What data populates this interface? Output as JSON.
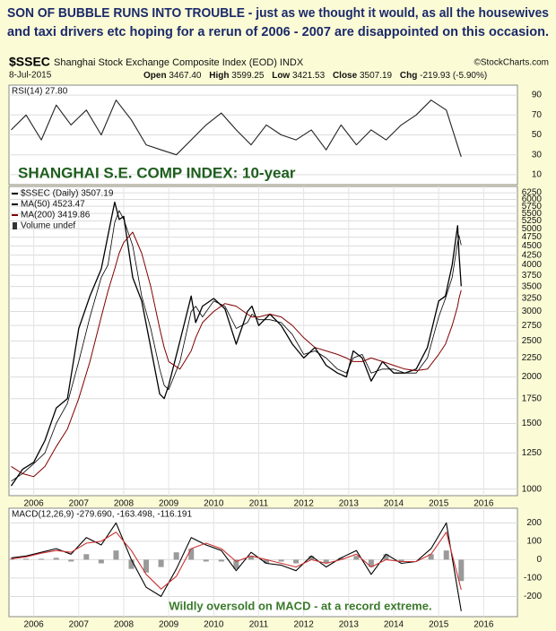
{
  "headline": [
    "SON OF BUBBLE RUNS INTO TROUBLE - just as we thought it would, as all the housewives",
    "and taxi drivers etc hoping for a rerun of 2006 - 2007 are disappointed on this occasion."
  ],
  "header": {
    "symbol": "$SSEC",
    "name": "Shanghai Stock Exchange Composite Index (EOD) INDX",
    "source": "©StockCharts.com",
    "date": "8-Jul-2015",
    "quote": [
      {
        "label": "Open",
        "value": "3467.40"
      },
      {
        "label": "High",
        "value": "3599.25"
      },
      {
        "label": "Low",
        "value": "3421.53"
      },
      {
        "label": "Close",
        "value": "3507.19"
      },
      {
        "label": "Chg",
        "value": "-219.93 (-5.90%)"
      }
    ]
  },
  "chart_data": [
    {
      "type": "line",
      "title": "RSI(14) 27.80",
      "annotation": "SHANGHAI S.E. COMP INDEX: 10-year",
      "x": [
        2005.5,
        2005.83,
        2006.17,
        2006.5,
        2006.83,
        2007.17,
        2007.5,
        2007.83,
        2008.17,
        2008.5,
        2008.83,
        2009.17,
        2009.5,
        2009.83,
        2010.17,
        2010.5,
        2010.83,
        2011.17,
        2011.5,
        2011.83,
        2012.17,
        2012.5,
        2012.83,
        2013.17,
        2013.5,
        2013.83,
        2014.17,
        2014.5,
        2014.83,
        2015.17,
        2015.5
      ],
      "series": [
        {
          "color": "#222222",
          "values": [
            55,
            70,
            45,
            80,
            60,
            75,
            50,
            85,
            65,
            40,
            35,
            30,
            45,
            60,
            72,
            55,
            40,
            60,
            50,
            45,
            55,
            35,
            60,
            40,
            55,
            45,
            60,
            70,
            85,
            75,
            27.8
          ]
        }
      ],
      "xlim": [
        2005.45,
        2016.75
      ],
      "ylim": [
        0,
        100
      ],
      "yticks": [
        10,
        30,
        50,
        70,
        90
      ],
      "grid": true
    },
    {
      "type": "line",
      "log_scale": true,
      "legend_items": [
        "Volume undef"
      ],
      "x": [
        2005.5,
        2005.75,
        2006.0,
        2006.25,
        2006.5,
        2006.75,
        2007.0,
        2007.25,
        2007.5,
        2007.65,
        2007.8,
        2007.9,
        2008.0,
        2008.2,
        2008.4,
        2008.6,
        2008.8,
        2008.9,
        2009.0,
        2009.25,
        2009.5,
        2009.6,
        2009.75,
        2010.0,
        2010.25,
        2010.5,
        2010.75,
        2010.85,
        2011.0,
        2011.25,
        2011.5,
        2011.75,
        2012.0,
        2012.25,
        2012.5,
        2012.75,
        2012.95,
        2013.1,
        2013.3,
        2013.5,
        2013.75,
        2014.0,
        2014.25,
        2014.5,
        2014.75,
        2015.0,
        2015.15,
        2015.3,
        2015.42,
        2015.45,
        2015.5
      ],
      "series": [
        {
          "name": "$SSEC (Daily) 3507.19",
          "color": "#000000",
          "width": 1.3,
          "values": [
            1020,
            1130,
            1180,
            1350,
            1650,
            1750,
            2700,
            3300,
            3900,
            4800,
            5900,
            5300,
            5400,
            3700,
            3200,
            2400,
            1800,
            1750,
            1900,
            2500,
            3300,
            2800,
            3100,
            3250,
            3050,
            2450,
            3000,
            3100,
            2750,
            2950,
            2750,
            2450,
            2250,
            2400,
            2150,
            2050,
            2000,
            2350,
            2250,
            1950,
            2200,
            2050,
            2050,
            2100,
            2400,
            3200,
            3300,
            4000,
            5100,
            4300,
            3507.19
          ]
        },
        {
          "name": "MA(50) 4523.47",
          "color": "#000000",
          "width": 0.8,
          "values": [
            1050,
            1100,
            1170,
            1250,
            1500,
            1700,
            2200,
            2900,
            3700,
            4000,
            5200,
            5600,
            5300,
            4500,
            3300,
            2700,
            2100,
            1900,
            1850,
            2200,
            3000,
            3100,
            2900,
            3200,
            3100,
            2700,
            2800,
            2950,
            2850,
            2850,
            2800,
            2600,
            2300,
            2350,
            2250,
            2100,
            2050,
            2250,
            2300,
            2050,
            2100,
            2100,
            2050,
            2050,
            2250,
            2900,
            3250,
            3700,
            4600,
            4800,
            4523.47
          ]
        },
        {
          "name": "MA(200) 3419.86",
          "color": "#800000",
          "width": 1,
          "values": [
            1150,
            1100,
            1080,
            1150,
            1300,
            1450,
            1750,
            2200,
            2900,
            3400,
            3900,
            4300,
            4600,
            4900,
            4300,
            3500,
            2700,
            2400,
            2200,
            2100,
            2350,
            2550,
            2800,
            3000,
            3150,
            3100,
            2950,
            2900,
            2900,
            2950,
            2900,
            2750,
            2550,
            2400,
            2350,
            2300,
            2250,
            2200,
            2200,
            2250,
            2200,
            2150,
            2100,
            2080,
            2100,
            2300,
            2450,
            2750,
            3100,
            3250,
            3419.86
          ]
        }
      ],
      "xlim": [
        2005.45,
        2016.75
      ],
      "xticks": [
        2006,
        2007,
        2008,
        2009,
        2010,
        2011,
        2012,
        2013,
        2014,
        2015,
        2016
      ],
      "ylim": [
        960,
        6500
      ],
      "yticks": [
        1000,
        1250,
        1500,
        1750,
        2000,
        2250,
        2500,
        2750,
        3000,
        3250,
        3500,
        3750,
        4000,
        4250,
        4500,
        4750,
        5000,
        5250,
        5500,
        5750,
        6000,
        6250
      ],
      "grid": true
    },
    {
      "type": "line",
      "title": "MACD(12,26,9) -279.690, -163.498, -116.191",
      "annotation": "Wildly oversold on MACD - at a record extreme.",
      "x": [
        2005.5,
        2005.83,
        2006.17,
        2006.5,
        2006.83,
        2007.17,
        2007.5,
        2007.83,
        2008.17,
        2008.5,
        2008.83,
        2009.17,
        2009.5,
        2009.83,
        2010.17,
        2010.5,
        2010.83,
        2011.17,
        2011.5,
        2011.83,
        2012.17,
        2012.5,
        2012.83,
        2013.17,
        2013.5,
        2013.83,
        2014.17,
        2014.5,
        2014.83,
        2015.17,
        2015.5
      ],
      "series": [
        {
          "kind": "histogram",
          "color": "#9a9a9a",
          "values": [
            5,
            5,
            5,
            10,
            -10,
            30,
            -20,
            50,
            -50,
            -70,
            -40,
            40,
            60,
            -10,
            -10,
            -50,
            20,
            -20,
            -10,
            -20,
            20,
            -20,
            10,
            20,
            -40,
            30,
            -10,
            0,
            30,
            50,
            -116.191
          ]
        },
        {
          "color": "#000000",
          "values": [
            10,
            20,
            40,
            60,
            30,
            120,
            80,
            200,
            0,
            -150,
            -200,
            -50,
            120,
            80,
            50,
            -60,
            40,
            -20,
            -30,
            -60,
            20,
            -40,
            10,
            50,
            -80,
            30,
            -20,
            -10,
            60,
            200,
            -279.69
          ]
        },
        {
          "color": "#cc3333",
          "values": [
            5,
            15,
            35,
            50,
            40,
            90,
            100,
            150,
            50,
            -80,
            -160,
            -90,
            60,
            90,
            60,
            -10,
            20,
            0,
            -20,
            -40,
            0,
            -20,
            0,
            30,
            -40,
            0,
            -10,
            -10,
            30,
            150,
            -163.498
          ]
        }
      ],
      "xlim": [
        2005.45,
        2016.75
      ],
      "xticks": [
        2006,
        2007,
        2008,
        2009,
        2010,
        2011,
        2012,
        2013,
        2014,
        2015,
        2016
      ],
      "ylim": [
        -310,
        280
      ],
      "yticks": [
        -200,
        -100,
        0,
        100,
        200
      ],
      "grid": true
    }
  ]
}
